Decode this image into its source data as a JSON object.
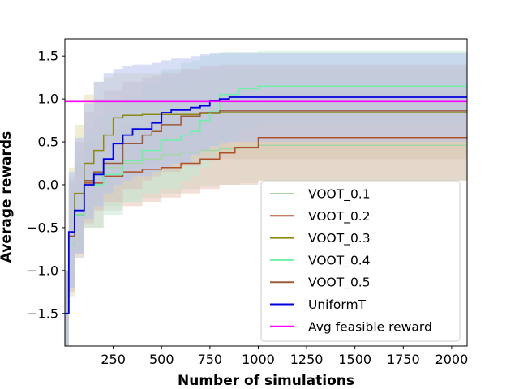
{
  "chart_data": {
    "type": "line",
    "xlabel": "Number of simulations",
    "ylabel": "Average rewards",
    "xlim": [
      0,
      2080
    ],
    "ylim": [
      -1.88,
      1.7
    ],
    "xticks": [
      250,
      500,
      750,
      1000,
      1250,
      1500,
      1750,
      2000
    ],
    "yticks": [
      -1.5,
      -1.0,
      -0.5,
      0.0,
      0.5,
      1.0,
      1.5
    ],
    "xtick_labels": [
      "250",
      "500",
      "750",
      "1000",
      "1250",
      "1500",
      "1750",
      "2000"
    ],
    "ytick_labels": [
      "−1.5",
      "−1.0",
      "−0.5",
      "0.0",
      "0.5",
      "1.0",
      "1.5"
    ],
    "grid": false,
    "legend_position": "lower right",
    "hline": {
      "name": "Avg feasible reward",
      "value": 0.97,
      "color": "#ff00ff"
    },
    "series": [
      {
        "name": "VOOT_0.1",
        "color": "#a6d6a6",
        "x": [
          0,
          20,
          50,
          100,
          150,
          200,
          300,
          400,
          500,
          600,
          700,
          800,
          900,
          1000,
          2080
        ],
        "values": [
          -1.5,
          -0.7,
          -0.3,
          0.05,
          0.15,
          0.2,
          0.25,
          0.3,
          0.35,
          0.38,
          0.4,
          0.42,
          0.44,
          0.46,
          0.46
        ],
        "band_upper": [
          -1.0,
          0.1,
          0.4,
          0.65,
          0.8,
          0.95,
          1.05,
          1.1,
          1.15,
          1.2,
          1.25,
          1.3,
          1.35,
          1.4,
          1.4
        ],
        "band_lower": [
          -2.0,
          -1.1,
          -0.8,
          -0.4,
          -0.3,
          -0.25,
          -0.2,
          -0.15,
          -0.1,
          -0.05,
          -0.02,
          0.0,
          0.02,
          0.05,
          0.05
        ],
        "band_color": "#c9e2c9"
      },
      {
        "name": "VOOT_0.2",
        "color": "#b0502a",
        "x": [
          0,
          20,
          50,
          100,
          200,
          300,
          400,
          500,
          600,
          700,
          800,
          880,
          1000,
          2080
        ],
        "values": [
          -1.5,
          -0.6,
          -0.35,
          0.02,
          0.1,
          0.15,
          0.18,
          0.2,
          0.25,
          0.3,
          0.37,
          0.43,
          0.55,
          0.55
        ],
        "band_upper": [
          -1.0,
          0.0,
          0.25,
          0.5,
          0.65,
          0.7,
          0.75,
          0.8,
          0.85,
          0.9,
          0.95,
          0.98,
          1.05,
          1.05
        ],
        "band_lower": [
          -2.0,
          -1.2,
          -0.8,
          -0.5,
          -0.3,
          -0.25,
          -0.2,
          -0.15,
          -0.1,
          -0.05,
          0.0,
          0.0,
          0.05,
          0.05
        ],
        "band_color": "#e7c4b8"
      },
      {
        "name": "VOOT_0.3",
        "color": "#8a8a14",
        "x": [
          0,
          20,
          50,
          100,
          150,
          200,
          250,
          300,
          400,
          500,
          600,
          700,
          800,
          2080
        ],
        "values": [
          -1.5,
          -0.6,
          -0.1,
          0.25,
          0.4,
          0.58,
          0.78,
          0.81,
          0.82,
          0.82,
          0.82,
          0.83,
          0.84,
          0.84
        ],
        "band_upper": [
          -1.0,
          0.2,
          0.7,
          1.05,
          1.2,
          1.25,
          1.3,
          1.3,
          1.3,
          1.32,
          1.35,
          1.36,
          1.37,
          1.37
        ],
        "band_lower": [
          -2.0,
          -1.3,
          -0.75,
          -0.4,
          -0.25,
          -0.1,
          0.1,
          0.2,
          0.25,
          0.28,
          0.3,
          0.31,
          0.32,
          0.32
        ],
        "band_color": "#e1e0b2"
      },
      {
        "name": "VOOT_0.4",
        "color": "#6ef0a8",
        "x": [
          0,
          20,
          50,
          100,
          200,
          300,
          400,
          500,
          600,
          650,
          700,
          750,
          800,
          900,
          1000,
          2080
        ],
        "values": [
          -1.5,
          -0.6,
          -0.35,
          0.0,
          0.12,
          0.28,
          0.4,
          0.52,
          0.58,
          0.62,
          0.75,
          0.85,
          1.05,
          1.12,
          1.15,
          1.15
        ],
        "band_upper": [
          -1.0,
          0.0,
          0.3,
          0.6,
          0.8,
          1.0,
          1.2,
          1.35,
          1.42,
          1.45,
          1.5,
          1.52,
          1.55,
          1.55,
          1.56,
          1.56
        ],
        "band_lower": [
          -2.0,
          -1.2,
          -0.8,
          -0.5,
          -0.35,
          -0.2,
          -0.1,
          -0.05,
          0.05,
          0.1,
          0.2,
          0.3,
          0.5,
          0.65,
          0.72,
          0.72
        ],
        "band_color": "#c5e9d6"
      },
      {
        "name": "VOOT_0.5",
        "color": "#9a5b3a",
        "x": [
          0,
          20,
          50,
          100,
          150,
          200,
          300,
          400,
          450,
          500,
          600,
          700,
          800,
          2080
        ],
        "values": [
          -1.5,
          -0.6,
          -0.3,
          0.05,
          0.15,
          0.25,
          0.48,
          0.58,
          0.62,
          0.7,
          0.8,
          0.84,
          0.86,
          0.86
        ],
        "band_upper": [
          -1.0,
          0.05,
          0.5,
          0.85,
          1.0,
          1.1,
          1.2,
          1.25,
          1.27,
          1.3,
          1.35,
          1.38,
          1.4,
          1.4
        ],
        "band_lower": [
          -2.0,
          -1.25,
          -0.85,
          -0.45,
          -0.3,
          -0.2,
          -0.05,
          0.05,
          0.1,
          0.15,
          0.22,
          0.28,
          0.3,
          0.3
        ],
        "band_color": "#d9c3b9"
      },
      {
        "name": "UniformT",
        "color": "#0000dd",
        "x": [
          0,
          20,
          50,
          100,
          150,
          200,
          250,
          300,
          350,
          450,
          500,
          550,
          650,
          700,
          750,
          800,
          850,
          2080
        ],
        "values": [
          -1.5,
          -0.55,
          -0.3,
          0.0,
          0.12,
          0.3,
          0.48,
          0.58,
          0.65,
          0.72,
          0.84,
          0.87,
          0.9,
          0.92,
          0.98,
          1.0,
          1.02,
          1.02
        ],
        "band_upper": [
          -1.0,
          0.15,
          0.55,
          0.95,
          1.2,
          1.3,
          1.35,
          1.38,
          1.4,
          1.42,
          1.45,
          1.47,
          1.5,
          1.52,
          1.53,
          1.53,
          1.54,
          1.54
        ],
        "band_lower": [
          -2.0,
          -1.2,
          -0.8,
          -0.4,
          -0.25,
          -0.1,
          0.0,
          0.05,
          0.1,
          0.15,
          0.2,
          0.25,
          0.35,
          0.4,
          0.45,
          0.48,
          0.5,
          0.5
        ],
        "band_color": "#b7c2ef"
      }
    ]
  }
}
